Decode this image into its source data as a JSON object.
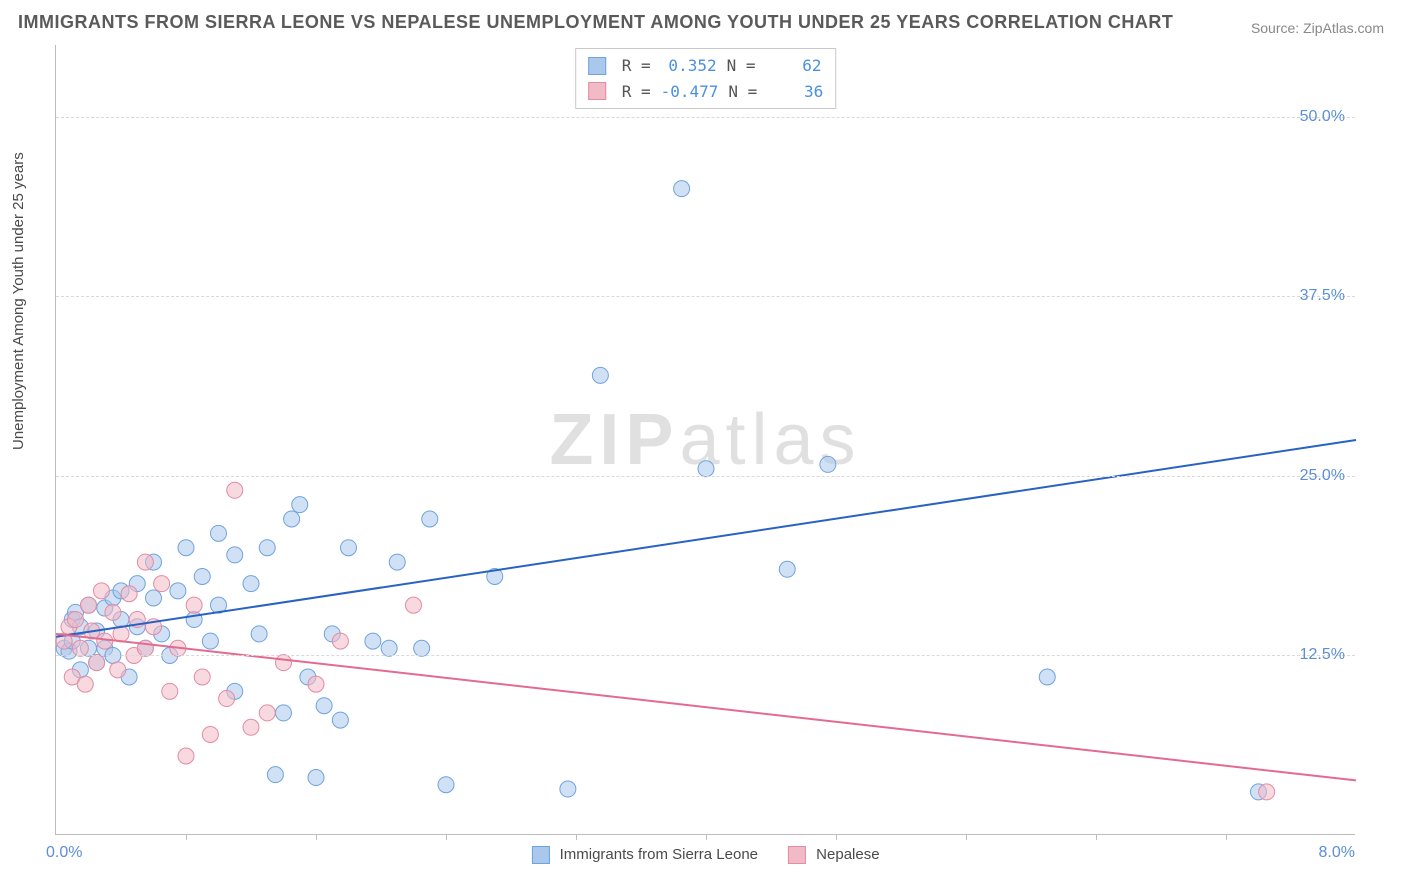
{
  "title": "IMMIGRANTS FROM SIERRA LEONE VS NEPALESE UNEMPLOYMENT AMONG YOUTH UNDER 25 YEARS CORRELATION CHART",
  "source_prefix": "Source: ",
  "source_name": "ZipAtlas.com",
  "ylabel": "Unemployment Among Youth under 25 years",
  "watermark_bold": "ZIP",
  "watermark_rest": "atlas",
  "chart": {
    "type": "scatter",
    "xlim": [
      0.0,
      8.0
    ],
    "ylim": [
      0.0,
      55.0
    ],
    "x_origin_label": "0.0%",
    "x_max_label": "8.0%",
    "y_gridlines": [
      12.5,
      25.0,
      37.5,
      50.0
    ],
    "y_tick_labels": [
      "12.5%",
      "25.0%",
      "37.5%",
      "50.0%"
    ],
    "x_tick_positions": [
      0.8,
      1.6,
      2.4,
      3.2,
      4.0,
      4.8,
      5.6,
      6.4,
      7.2
    ],
    "grid_color": "#d9d9d9",
    "axis_color": "#bdbdbd",
    "tick_label_color": "#5b8fd6",
    "background_color": "#ffffff",
    "marker_radius": 8,
    "marker_opacity": 0.55,
    "line_width": 2,
    "series": [
      {
        "name": "Immigrants from Sierra Leone",
        "fill_color": "#a9c8ec",
        "stroke_color": "#6fa3dd",
        "line_color": "#2862c2",
        "R": "0.352",
        "N": "62",
        "trend": {
          "x1": 0.0,
          "y1": 13.8,
          "x2": 8.0,
          "y2": 27.5
        },
        "points": [
          [
            0.05,
            13.0
          ],
          [
            0.08,
            12.8
          ],
          [
            0.1,
            15.0
          ],
          [
            0.1,
            13.5
          ],
          [
            0.12,
            15.5
          ],
          [
            0.15,
            11.5
          ],
          [
            0.15,
            14.5
          ],
          [
            0.2,
            16.0
          ],
          [
            0.2,
            13.0
          ],
          [
            0.25,
            12.0
          ],
          [
            0.25,
            14.2
          ],
          [
            0.3,
            15.8
          ],
          [
            0.3,
            13.0
          ],
          [
            0.35,
            16.5
          ],
          [
            0.35,
            12.5
          ],
          [
            0.4,
            17.0
          ],
          [
            0.4,
            15.0
          ],
          [
            0.45,
            11.0
          ],
          [
            0.5,
            17.5
          ],
          [
            0.5,
            14.5
          ],
          [
            0.55,
            13.0
          ],
          [
            0.6,
            16.5
          ],
          [
            0.6,
            19.0
          ],
          [
            0.65,
            14.0
          ],
          [
            0.7,
            12.5
          ],
          [
            0.75,
            17.0
          ],
          [
            0.8,
            20.0
          ],
          [
            0.85,
            15.0
          ],
          [
            0.9,
            18.0
          ],
          [
            0.95,
            13.5
          ],
          [
            1.0,
            21.0
          ],
          [
            1.0,
            16.0
          ],
          [
            1.1,
            19.5
          ],
          [
            1.1,
            10.0
          ],
          [
            1.2,
            17.5
          ],
          [
            1.25,
            14.0
          ],
          [
            1.3,
            20.0
          ],
          [
            1.35,
            4.2
          ],
          [
            1.4,
            8.5
          ],
          [
            1.45,
            22.0
          ],
          [
            1.5,
            23.0
          ],
          [
            1.55,
            11.0
          ],
          [
            1.6,
            4.0
          ],
          [
            1.65,
            9.0
          ],
          [
            1.7,
            14.0
          ],
          [
            1.75,
            8.0
          ],
          [
            1.8,
            20.0
          ],
          [
            1.95,
            13.5
          ],
          [
            2.05,
            13.0
          ],
          [
            2.1,
            19.0
          ],
          [
            2.25,
            13.0
          ],
          [
            2.3,
            22.0
          ],
          [
            2.4,
            3.5
          ],
          [
            2.7,
            18.0
          ],
          [
            3.15,
            3.2
          ],
          [
            3.35,
            32.0
          ],
          [
            3.85,
            45.0
          ],
          [
            4.0,
            25.5
          ],
          [
            4.5,
            18.5
          ],
          [
            4.75,
            25.8
          ],
          [
            6.1,
            11.0
          ],
          [
            7.4,
            3.0
          ]
        ]
      },
      {
        "name": "Nepalese",
        "fill_color": "#f2b9c7",
        "stroke_color": "#e38ca3",
        "line_color": "#e36b8f",
        "R": "-0.477",
        "N": "36",
        "trend": {
          "x1": 0.0,
          "y1": 14.0,
          "x2": 8.0,
          "y2": 3.8
        },
        "points": [
          [
            0.05,
            13.5
          ],
          [
            0.08,
            14.5
          ],
          [
            0.1,
            11.0
          ],
          [
            0.12,
            15.0
          ],
          [
            0.15,
            13.0
          ],
          [
            0.18,
            10.5
          ],
          [
            0.2,
            16.0
          ],
          [
            0.22,
            14.2
          ],
          [
            0.25,
            12.0
          ],
          [
            0.28,
            17.0
          ],
          [
            0.3,
            13.5
          ],
          [
            0.35,
            15.5
          ],
          [
            0.38,
            11.5
          ],
          [
            0.4,
            14.0
          ],
          [
            0.45,
            16.8
          ],
          [
            0.48,
            12.5
          ],
          [
            0.5,
            15.0
          ],
          [
            0.55,
            13.0
          ],
          [
            0.55,
            19.0
          ],
          [
            0.6,
            14.5
          ],
          [
            0.65,
            17.5
          ],
          [
            0.7,
            10.0
          ],
          [
            0.75,
            13.0
          ],
          [
            0.8,
            5.5
          ],
          [
            0.85,
            16.0
          ],
          [
            0.9,
            11.0
          ],
          [
            0.95,
            7.0
          ],
          [
            1.05,
            9.5
          ],
          [
            1.1,
            24.0
          ],
          [
            1.2,
            7.5
          ],
          [
            1.3,
            8.5
          ],
          [
            1.4,
            12.0
          ],
          [
            1.6,
            10.5
          ],
          [
            1.75,
            13.5
          ],
          [
            2.2,
            16.0
          ],
          [
            7.45,
            3.0
          ]
        ]
      }
    ]
  },
  "legend": {
    "series1_label": "Immigrants from Sierra Leone",
    "series2_label": "Nepalese",
    "r_label": "R =",
    "n_label": "N ="
  }
}
